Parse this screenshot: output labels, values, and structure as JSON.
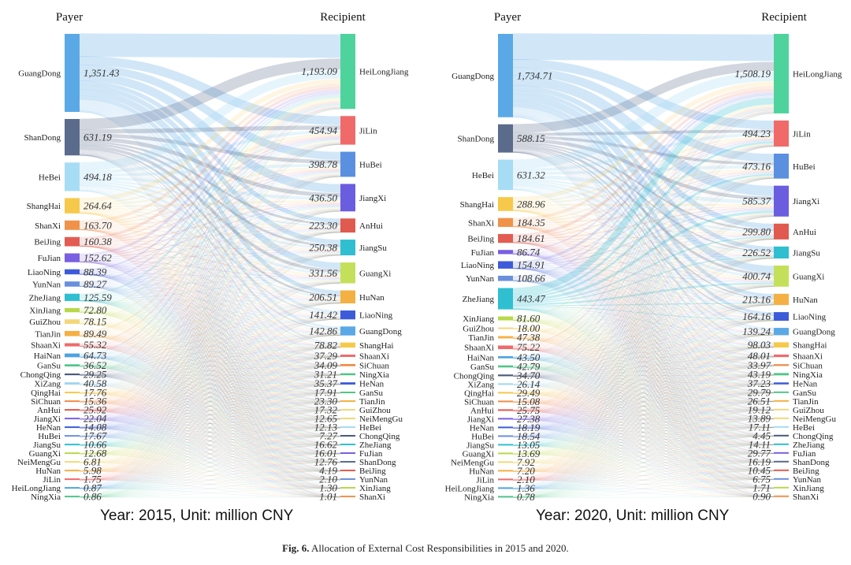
{
  "caption": {
    "label": "Fig. 6.",
    "text": "Allocation of External Cost Responsibilities in 2015 and 2020."
  },
  "chart_data": [
    {
      "type": "sankey",
      "title": "Year: 2015, Unit: million CNY",
      "payer_header": "Payer",
      "recipient_header": "Recipient",
      "payers": [
        {
          "name": "GuangDong",
          "value": 1351.43,
          "label": "1,351.43",
          "color": "#5aa9e6"
        },
        {
          "name": "ShanDong",
          "value": 631.19,
          "label": "631.19",
          "color": "#5a6b8c"
        },
        {
          "name": "HeBei",
          "value": 494.18,
          "label": "494.18",
          "color": "#a7dcf5"
        },
        {
          "name": "ShangHai",
          "value": 264.64,
          "label": "264.64",
          "color": "#f6c94a"
        },
        {
          "name": "ShanXi",
          "value": 163.7,
          "label": "163.70",
          "color": "#f0924a"
        },
        {
          "name": "BeiJing",
          "value": 160.38,
          "label": "160.38",
          "color": "#e25c52"
        },
        {
          "name": "FuJian",
          "value": 152.62,
          "label": "152.62",
          "color": "#7a5fe0"
        },
        {
          "name": "LiaoNing",
          "value": 88.39,
          "label": "88.39",
          "color": "#3d5bd9"
        },
        {
          "name": "YunNan",
          "value": 89.27,
          "label": "89.27",
          "color": "#6b8fdc"
        },
        {
          "name": "ZheJiang",
          "value": 125.59,
          "label": "125.59",
          "color": "#2fbfd0"
        },
        {
          "name": "XinJiang",
          "value": 72.8,
          "label": "72.80",
          "color": "#b8d84a"
        },
        {
          "name": "GuiZhou",
          "value": 78.15,
          "label": "78.15",
          "color": "#f3d77a"
        },
        {
          "name": "TianJin",
          "value": 89.49,
          "label": "89.49",
          "color": "#f5b043"
        },
        {
          "name": "ShaanXi",
          "value": 55.32,
          "label": "55.32",
          "color": "#ee6b6b"
        },
        {
          "name": "HaiNan",
          "value": 64.73,
          "label": "64.73",
          "color": "#4da3e0"
        },
        {
          "name": "GanSu",
          "value": 36.52,
          "label": "36.52",
          "color": "#4fc48a"
        },
        {
          "name": "ChongQing",
          "value": 29.25,
          "label": "29.25",
          "color": "#4a5a7a"
        },
        {
          "name": "XiZang",
          "value": 40.58,
          "label": "40.58",
          "color": "#9fd6ef"
        },
        {
          "name": "QingHai",
          "value": 17.76,
          "label": "17.76",
          "color": "#f1c94d"
        },
        {
          "name": "SiChuan",
          "value": 15.36,
          "label": "15.36",
          "color": "#f08c4a"
        },
        {
          "name": "AnHui",
          "value": 25.92,
          "label": "25.92",
          "color": "#e0574f"
        },
        {
          "name": "JiangXi",
          "value": 22.04,
          "label": "22.04",
          "color": "#7a5fe0"
        },
        {
          "name": "HeNan",
          "value": 14.08,
          "label": "14.08",
          "color": "#3d5bd9"
        },
        {
          "name": "HuBei",
          "value": 17.67,
          "label": "17.67",
          "color": "#6b8fdc"
        },
        {
          "name": "JiangSu",
          "value": 10.66,
          "label": "10.66",
          "color": "#2fbfd0"
        },
        {
          "name": "GuangXi",
          "value": 12.68,
          "label": "12.68",
          "color": "#b8d84a"
        },
        {
          "name": "NeiMengGu",
          "value": 6.81,
          "label": "6.81",
          "color": "#f3d77a"
        },
        {
          "name": "HuNan",
          "value": 5.98,
          "label": "5.98",
          "color": "#f5b043"
        },
        {
          "name": "JiLin",
          "value": 1.75,
          "label": "1.75",
          "color": "#ee6b6b"
        },
        {
          "name": "HeiLongJiang",
          "value": 0.87,
          "label": "0.87",
          "color": "#4da3e0"
        },
        {
          "name": "NingXia",
          "value": 0.86,
          "label": "0.86",
          "color": "#4fc48a"
        }
      ],
      "recipients": [
        {
          "name": "HeiLongJiang",
          "value": 1193.09,
          "label": "1,193.09",
          "color": "#4fd39c"
        },
        {
          "name": "JiLin",
          "value": 454.94,
          "label": "454.94",
          "color": "#f06a6a"
        },
        {
          "name": "HuBei",
          "value": 398.78,
          "label": "398.78",
          "color": "#5b8fe0"
        },
        {
          "name": "JiangXi",
          "value": 436.5,
          "label": "436.50",
          "color": "#6b5de0"
        },
        {
          "name": "AnHui",
          "value": 223.3,
          "label": "223.30",
          "color": "#e05a4f"
        },
        {
          "name": "JiangSu",
          "value": 250.38,
          "label": "250.38",
          "color": "#2fbfd0"
        },
        {
          "name": "GuangXi",
          "value": 331.56,
          "label": "331.56",
          "color": "#c4e05a"
        },
        {
          "name": "HuNan",
          "value": 206.51,
          "label": "206.51",
          "color": "#f5b043"
        },
        {
          "name": "LiaoNing",
          "value": 141.42,
          "label": "141.42",
          "color": "#3d5bd9"
        },
        {
          "name": "GuangDong",
          "value": 142.86,
          "label": "142.86",
          "color": "#5aa9e6"
        },
        {
          "name": "ShangHai",
          "value": 78.82,
          "label": "78.82",
          "color": "#f6c94a"
        },
        {
          "name": "ShaanXi",
          "value": 37.29,
          "label": "37.29",
          "color": "#ee6b6b"
        },
        {
          "name": "SiChuan",
          "value": 34.09,
          "label": "34.09",
          "color": "#f08c4a"
        },
        {
          "name": "NingXia",
          "value": 31.21,
          "label": "31.21",
          "color": "#4fc48a"
        },
        {
          "name": "HeNan",
          "value": 35.37,
          "label": "35.37",
          "color": "#3d5bd9"
        },
        {
          "name": "GanSu",
          "value": 17.91,
          "label": "17.91",
          "color": "#4fc48a"
        },
        {
          "name": "TianJin",
          "value": 23.3,
          "label": "23.30",
          "color": "#f5b043"
        },
        {
          "name": "GuiZhou",
          "value": 17.32,
          "label": "17.32",
          "color": "#f3d77a"
        },
        {
          "name": "NeiMengGu",
          "value": 12.65,
          "label": "12.65",
          "color": "#f3d77a"
        },
        {
          "name": "HeBei",
          "value": 12.13,
          "label": "12.13",
          "color": "#a7dcf5"
        },
        {
          "name": "ChongQing",
          "value": 7.27,
          "label": "7.27",
          "color": "#4a5a7a"
        },
        {
          "name": "ZheJiang",
          "value": 16.62,
          "label": "16.62",
          "color": "#2fbfd0"
        },
        {
          "name": "FuJian",
          "value": 16.01,
          "label": "16.01",
          "color": "#7a5fe0"
        },
        {
          "name": "ShanDong",
          "value": 12.76,
          "label": "12.76",
          "color": "#5a6b8c"
        },
        {
          "name": "BeiJing",
          "value": 4.19,
          "label": "4.19",
          "color": "#e25c52"
        },
        {
          "name": "YunNan",
          "value": 2.1,
          "label": "2.10",
          "color": "#6b8fdc"
        },
        {
          "name": "XinJiang",
          "value": 1.3,
          "label": "1.30",
          "color": "#b8d84a"
        },
        {
          "name": "ShanXi",
          "value": 1.01,
          "label": "1.01",
          "color": "#f0924a"
        }
      ]
    },
    {
      "type": "sankey",
      "title": "Year: 2020, Unit: million CNY",
      "payer_header": "Payer",
      "recipient_header": "Recipient",
      "payers": [
        {
          "name": "GuangDong",
          "value": 1734.71,
          "label": "1,734.71",
          "color": "#5aa9e6"
        },
        {
          "name": "ShanDong",
          "value": 588.15,
          "label": "588.15",
          "color": "#5a6b8c"
        },
        {
          "name": "HeBei",
          "value": 631.32,
          "label": "631.32",
          "color": "#a7dcf5"
        },
        {
          "name": "ShangHai",
          "value": 288.96,
          "label": "288.96",
          "color": "#f6c94a"
        },
        {
          "name": "ShanXi",
          "value": 184.35,
          "label": "184.35",
          "color": "#f0924a"
        },
        {
          "name": "BeiJing",
          "value": 184.61,
          "label": "184.61",
          "color": "#e25c52"
        },
        {
          "name": "FuJian",
          "value": 86.74,
          "label": "86.74",
          "color": "#7a5fe0"
        },
        {
          "name": "LiaoNing",
          "value": 154.91,
          "label": "154.91",
          "color": "#3d5bd9"
        },
        {
          "name": "YunNan",
          "value": 108.66,
          "label": "108.66",
          "color": "#6b8fdc"
        },
        {
          "name": "ZheJiang",
          "value": 443.47,
          "label": "443.47",
          "color": "#2fbfd0"
        },
        {
          "name": "XinJiang",
          "value": 81.6,
          "label": "81.60",
          "color": "#b8d84a"
        },
        {
          "name": "GuiZhou",
          "value": 18.0,
          "label": "18.00",
          "color": "#f3d77a"
        },
        {
          "name": "TianJin",
          "value": 47.38,
          "label": "47.38",
          "color": "#f5b043"
        },
        {
          "name": "ShaanXi",
          "value": 75.22,
          "label": "75.22",
          "color": "#ee6b6b"
        },
        {
          "name": "HaiNan",
          "value": 43.5,
          "label": "43.50",
          "color": "#4da3e0"
        },
        {
          "name": "GanSu",
          "value": 42.79,
          "label": "42.79",
          "color": "#4fc48a"
        },
        {
          "name": "ChongQing",
          "value": 34.7,
          "label": "34.70",
          "color": "#4a5a7a"
        },
        {
          "name": "XiZang",
          "value": 26.14,
          "label": "26.14",
          "color": "#9fd6ef"
        },
        {
          "name": "QingHai",
          "value": 29.49,
          "label": "29.49",
          "color": "#f1c94d"
        },
        {
          "name": "SiChuan",
          "value": 15.08,
          "label": "15.08",
          "color": "#f08c4a"
        },
        {
          "name": "AnHui",
          "value": 25.75,
          "label": "25.75",
          "color": "#e0574f"
        },
        {
          "name": "JiangXi",
          "value": 27.38,
          "label": "27.38",
          "color": "#7a5fe0"
        },
        {
          "name": "HeNan",
          "value": 18.19,
          "label": "18.19",
          "color": "#3d5bd9"
        },
        {
          "name": "HuBei",
          "value": 18.54,
          "label": "18.54",
          "color": "#6b8fdc"
        },
        {
          "name": "JiangSu",
          "value": 13.05,
          "label": "13.05",
          "color": "#2fbfd0"
        },
        {
          "name": "GuangXi",
          "value": 13.69,
          "label": "13.69",
          "color": "#b8d84a"
        },
        {
          "name": "NeiMengGu",
          "value": 7.92,
          "label": "7.92",
          "color": "#f3d77a"
        },
        {
          "name": "HuNan",
          "value": 7.2,
          "label": "7.20",
          "color": "#f5b043"
        },
        {
          "name": "JiLin",
          "value": 2.1,
          "label": "2.10",
          "color": "#ee6b6b"
        },
        {
          "name": "HeiLongJiang",
          "value": 1.36,
          "label": "1.36",
          "color": "#4da3e0"
        },
        {
          "name": "NingXia",
          "value": 0.78,
          "label": "0.78",
          "color": "#4fc48a"
        }
      ],
      "recipients": [
        {
          "name": "HeiLongJiang",
          "value": 1508.19,
          "label": "1,508.19",
          "color": "#4fd39c"
        },
        {
          "name": "JiLin",
          "value": 494.23,
          "label": "494.23",
          "color": "#f06a6a"
        },
        {
          "name": "HuBei",
          "value": 473.16,
          "label": "473.16",
          "color": "#5b8fe0"
        },
        {
          "name": "JiangXi",
          "value": 585.37,
          "label": "585.37",
          "color": "#6b5de0"
        },
        {
          "name": "AnHui",
          "value": 299.8,
          "label": "299.80",
          "color": "#e05a4f"
        },
        {
          "name": "JiangSu",
          "value": 226.52,
          "label": "226.52",
          "color": "#2fbfd0"
        },
        {
          "name": "GuangXi",
          "value": 400.74,
          "label": "400.74",
          "color": "#c4e05a"
        },
        {
          "name": "HuNan",
          "value": 213.16,
          "label": "213.16",
          "color": "#f5b043"
        },
        {
          "name": "LiaoNing",
          "value": 164.16,
          "label": "164.16",
          "color": "#3d5bd9"
        },
        {
          "name": "GuangDong",
          "value": 139.24,
          "label": "139.24",
          "color": "#5aa9e6"
        },
        {
          "name": "ShangHai",
          "value": 98.03,
          "label": "98.03",
          "color": "#f6c94a"
        },
        {
          "name": "ShaanXi",
          "value": 48.01,
          "label": "48.01",
          "color": "#ee6b6b"
        },
        {
          "name": "SiChuan",
          "value": 33.97,
          "label": "33.97",
          "color": "#f08c4a"
        },
        {
          "name": "NingXia",
          "value": 43.19,
          "label": "43.19",
          "color": "#4fc48a"
        },
        {
          "name": "HeNan",
          "value": 37.23,
          "label": "37.23",
          "color": "#3d5bd9"
        },
        {
          "name": "GanSu",
          "value": 29.79,
          "label": "29.79",
          "color": "#4fc48a"
        },
        {
          "name": "TianJin",
          "value": 26.51,
          "label": "26.51",
          "color": "#f5b043"
        },
        {
          "name": "GuiZhou",
          "value": 19.12,
          "label": "19.12",
          "color": "#f3d77a"
        },
        {
          "name": "NeiMengGu",
          "value": 13.89,
          "label": "13.89",
          "color": "#f3d77a"
        },
        {
          "name": "HeBei",
          "value": 17.11,
          "label": "17.11",
          "color": "#a7dcf5"
        },
        {
          "name": "ChongQing",
          "value": 4.45,
          "label": "4.45",
          "color": "#4a5a7a"
        },
        {
          "name": "ZheJiang",
          "value": 14.11,
          "label": "14.11",
          "color": "#2fbfd0"
        },
        {
          "name": "FuJian",
          "value": 29.77,
          "label": "29.77",
          "color": "#7a5fe0"
        },
        {
          "name": "ShanDong",
          "value": 16.19,
          "label": "16.19",
          "color": "#5a6b8c"
        },
        {
          "name": "BeiJing",
          "value": 10.45,
          "label": "10.45",
          "color": "#e25c52"
        },
        {
          "name": "YunNan",
          "value": 6.75,
          "label": "6.75",
          "color": "#6b8fdc"
        },
        {
          "name": "XinJiang",
          "value": 1.71,
          "label": "1.71",
          "color": "#b8d84a"
        },
        {
          "name": "ShanXi",
          "value": 0.9,
          "label": "0.90",
          "color": "#f0924a"
        }
      ]
    }
  ]
}
